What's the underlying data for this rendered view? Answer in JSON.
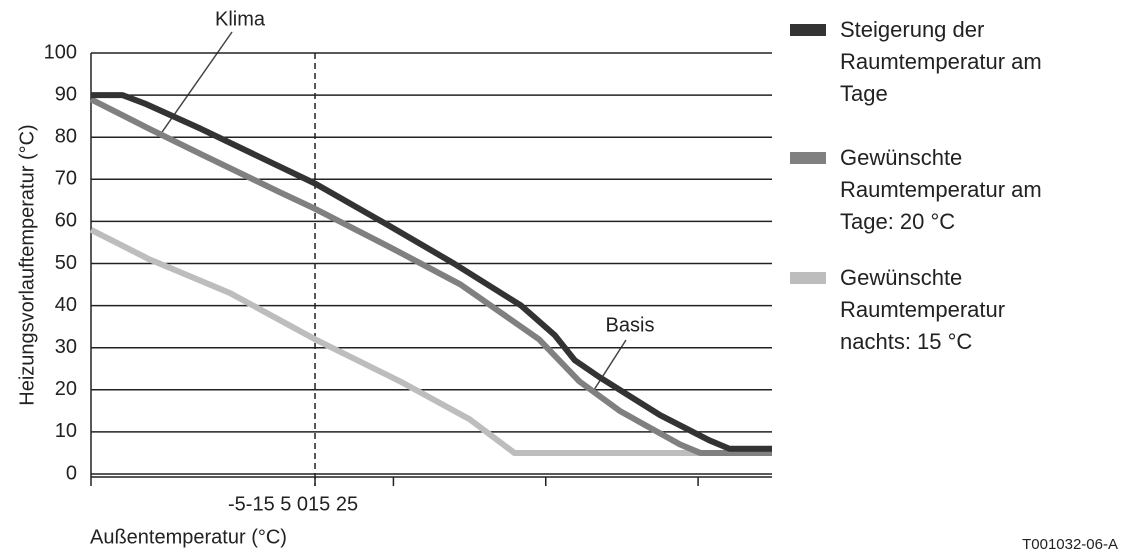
{
  "chart_data": {
    "type": "line",
    "ylabel": "Heizungsvorlauftemperatur (°C)",
    "xlabel": "Außentemperatur (°C)",
    "xtick_text": "-5-15 5 015 25",
    "xlim": [
      -10,
      20.4
    ],
    "x_tick_marks": [
      -10,
      0,
      3.5,
      10.3,
      17.1
    ],
    "vline": 0,
    "ylim": [
      0,
      100
    ],
    "yticks": [
      0,
      10,
      20,
      30,
      40,
      50,
      60,
      70,
      80,
      90,
      100
    ],
    "grid": true,
    "series": [
      {
        "name": "Steigerung der Raumtemperatur am Tage",
        "color": "#333333",
        "x": [
          -10,
          -8.6,
          -7.6,
          -5.1,
          0,
          3.3,
          6.2,
          9.2,
          10.7,
          11.6,
          12.7,
          15.4,
          17.6,
          18.5,
          20.4
        ],
        "values": [
          90,
          90,
          88,
          82,
          69,
          59,
          50,
          40,
          33,
          27,
          23,
          14,
          8,
          6,
          6
        ]
      },
      {
        "name": "Gewünschte Raumtemperatur am Tage: 20 °C",
        "color": "#808080",
        "x": [
          -10,
          -7.4,
          -5.1,
          -1.6,
          0,
          3.3,
          6.5,
          10,
          11.8,
          13.6,
          16.3,
          17.2,
          20.4
        ],
        "values": [
          89,
          82,
          76,
          67,
          63,
          54,
          45,
          32,
          22,
          15,
          7,
          5,
          5
        ]
      },
      {
        "name": "Gewünschte Raumtemperatur nachts: 15 °C",
        "color": "#bdbdbd",
        "x": [
          -10,
          -7.4,
          -3.8,
          0,
          3.8,
          6.9,
          8.9,
          20.4
        ],
        "values": [
          58,
          51,
          43,
          32,
          22,
          13,
          5,
          5
        ]
      }
    ],
    "annotations": [
      "Klima",
      "Basis"
    ],
    "footer": "T001032-06-A"
  }
}
